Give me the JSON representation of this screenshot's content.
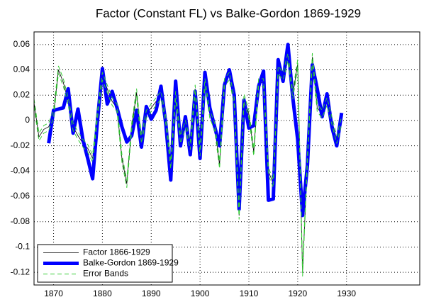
{
  "chart_data": {
    "type": "line",
    "title": "Factor (Constant FL) vs Balke-Gordon 1869-1929",
    "xlim": [
      1866,
      1945
    ],
    "xticks": [
      1870,
      1880,
      1890,
      1900,
      1910,
      1920,
      1930
    ],
    "ylim": [
      -0.13,
      0.07
    ],
    "yticks": [
      0.06,
      0.04,
      0.02,
      0,
      -0.02,
      -0.04,
      -0.06,
      -0.08,
      -0.1,
      -0.12
    ],
    "grid": true,
    "legend": "lower left",
    "series": [
      {
        "name": "Factor 1866-1929",
        "color": "#000000",
        "x": [
          1866,
          1867,
          1868,
          1869,
          1870,
          1871,
          1872,
          1873,
          1874,
          1875,
          1876,
          1877,
          1878,
          1879,
          1880,
          1881,
          1882,
          1883,
          1884,
          1885,
          1886,
          1887,
          1888,
          1889,
          1890,
          1891,
          1892,
          1893,
          1894,
          1895,
          1896,
          1897,
          1898,
          1899,
          1900,
          1901,
          1902,
          1903,
          1904,
          1905,
          1906,
          1907,
          1908,
          1909,
          1910,
          1911,
          1912,
          1913,
          1914,
          1915,
          1916,
          1917,
          1918,
          1919,
          1920,
          1921,
          1922,
          1923,
          1924,
          1925,
          1926,
          1927,
          1928,
          1929
        ],
        "values": [
          0.014,
          -0.013,
          -0.007,
          -0.005,
          0.005,
          0.04,
          0.03,
          0.015,
          -0.005,
          -0.012,
          -0.018,
          -0.022,
          -0.03,
          0.005,
          0.035,
          0.025,
          0.015,
          0.01,
          -0.03,
          -0.05,
          -0.005,
          0.022,
          -0.015,
          0.005,
          0.01,
          0.015,
          0.02,
          0.0,
          -0.035,
          0.02,
          -0.015,
          -0.003,
          -0.02,
          0.025,
          -0.025,
          0.03,
          0.005,
          -0.005,
          -0.035,
          0.03,
          0.035,
          0.015,
          -0.075,
          0.018,
          0.005,
          -0.025,
          0.03,
          0.03,
          -0.04,
          -0.05,
          0.04,
          0.035,
          0.05,
          0.02,
          0.045,
          -0.12,
          -0.03,
          0.05,
          0.01,
          0.005,
          0.015,
          0.0,
          -0.015,
          0.0
        ]
      },
      {
        "name": "Balke-Gordon 1869-1929",
        "color": "#0000ff",
        "x": [
          1869,
          1870,
          1871,
          1872,
          1873,
          1874,
          1875,
          1876,
          1877,
          1878,
          1879,
          1880,
          1881,
          1882,
          1883,
          1884,
          1885,
          1886,
          1887,
          1888,
          1889,
          1890,
          1891,
          1892,
          1893,
          1894,
          1895,
          1896,
          1897,
          1898,
          1899,
          1900,
          1901,
          1902,
          1903,
          1904,
          1905,
          1906,
          1907,
          1908,
          1909,
          1910,
          1911,
          1912,
          1913,
          1914,
          1915,
          1916,
          1917,
          1918,
          1919,
          1920,
          1921,
          1922,
          1923,
          1924,
          1925,
          1926,
          1927,
          1928,
          1929
        ],
        "values": [
          -0.018,
          0.008,
          0.009,
          0.01,
          0.025,
          -0.01,
          0.009,
          -0.015,
          -0.03,
          -0.046,
          0.0,
          0.041,
          0.013,
          0.023,
          0.01,
          -0.005,
          -0.017,
          -0.012,
          0.008,
          -0.021,
          0.011,
          0.001,
          0.008,
          0.027,
          -0.003,
          -0.047,
          0.031,
          -0.02,
          0.003,
          -0.027,
          0.023,
          -0.03,
          0.038,
          0.01,
          -0.005,
          -0.02,
          0.028,
          0.04,
          0.02,
          -0.07,
          0.016,
          -0.006,
          -0.004,
          0.027,
          0.039,
          -0.063,
          -0.062,
          0.048,
          0.031,
          0.06,
          0.018,
          -0.015,
          -0.075,
          -0.035,
          0.044,
          0.025,
          0.003,
          0.021,
          -0.005,
          -0.02,
          0.006
        ]
      },
      {
        "name": "Error Bands",
        "color": "#33cc33",
        "dashed": true,
        "x": [
          1866,
          1867,
          1868,
          1869,
          1870,
          1871,
          1872,
          1873,
          1874,
          1875,
          1876,
          1877,
          1878,
          1879,
          1880,
          1881,
          1882,
          1883,
          1884,
          1885,
          1886,
          1887,
          1888,
          1889,
          1890,
          1891,
          1892,
          1893,
          1894,
          1895,
          1896,
          1897,
          1898,
          1899,
          1900,
          1901,
          1902,
          1903,
          1904,
          1905,
          1906,
          1907,
          1908,
          1909,
          1910,
          1911,
          1912,
          1913,
          1914,
          1915,
          1916,
          1917,
          1918,
          1919,
          1920,
          1921,
          1922,
          1923,
          1924,
          1925,
          1926,
          1927,
          1928,
          1929
        ],
        "upper": [
          0.017,
          -0.01,
          -0.004,
          -0.002,
          0.008,
          0.043,
          0.033,
          0.018,
          -0.002,
          -0.009,
          -0.015,
          -0.019,
          -0.027,
          0.008,
          0.038,
          0.028,
          0.018,
          0.013,
          -0.027,
          -0.047,
          -0.002,
          0.025,
          -0.012,
          0.008,
          0.013,
          0.018,
          0.023,
          0.003,
          -0.032,
          0.023,
          -0.012,
          0.0,
          -0.017,
          0.028,
          -0.022,
          0.033,
          0.008,
          -0.002,
          -0.032,
          0.033,
          0.038,
          0.018,
          -0.072,
          0.021,
          0.008,
          -0.022,
          0.033,
          0.033,
          -0.037,
          -0.047,
          0.043,
          0.038,
          0.053,
          0.023,
          0.048,
          -0.117,
          -0.027,
          0.053,
          0.013,
          0.008,
          0.018,
          0.003,
          -0.012,
          0.003
        ],
        "lower": [
          0.011,
          -0.016,
          -0.01,
          -0.008,
          0.002,
          0.037,
          0.027,
          0.012,
          -0.008,
          -0.015,
          -0.021,
          -0.025,
          -0.033,
          0.002,
          0.032,
          0.022,
          0.012,
          0.007,
          -0.033,
          -0.053,
          -0.008,
          0.019,
          -0.018,
          0.002,
          0.007,
          0.012,
          0.017,
          -0.003,
          -0.038,
          0.017,
          -0.018,
          -0.006,
          -0.023,
          0.022,
          -0.028,
          0.027,
          0.002,
          -0.008,
          -0.038,
          0.027,
          0.032,
          0.012,
          -0.078,
          0.015,
          0.002,
          -0.028,
          0.027,
          0.027,
          -0.043,
          -0.053,
          0.037,
          0.032,
          0.047,
          0.017,
          0.042,
          -0.123,
          -0.033,
          0.047,
          0.007,
          0.002,
          0.012,
          -0.003,
          -0.018,
          -0.003
        ]
      }
    ]
  }
}
